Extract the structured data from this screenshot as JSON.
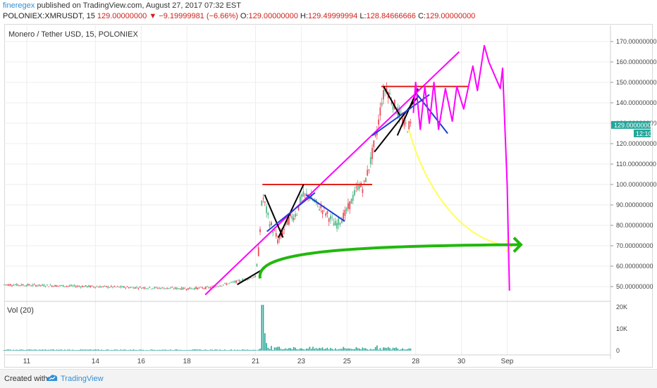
{
  "header": {
    "username": "fineregex",
    "published_text": "published on TradingView.com, August 27, 2017 07:32 EST"
  },
  "symbol_bar": {
    "ticker": "POLONIEX:XMRUSDT, 15",
    "last": "129.00000000",
    "arrow": "▼",
    "change": "−9.19999981 (−6.66%)",
    "o_label": "O:",
    "o_value": "129.00000000",
    "h_label": "H:",
    "h_value": "129.49999994",
    "l_label": "L:",
    "l_value": "128.84666666",
    "c_label": "C:",
    "c_value": "129.00000000"
  },
  "chart_data": {
    "type": "candlestick",
    "title": "Monero / Tether USD, 15, POLONIEX",
    "volume_label": "Vol (20)",
    "y_ticks": [
      "170.00000000",
      "160.00000000",
      "150.00000000",
      "140.00000000",
      "130.00000000",
      "120.00000000",
      "110.00000000",
      "100.00000000",
      "90.00000000",
      "80.00000000",
      "70.00000000",
      "60.00000000",
      "50.00000000"
    ],
    "y_tick_values": [
      170,
      160,
      150,
      140,
      130,
      120,
      110,
      100,
      90,
      80,
      70,
      60,
      50
    ],
    "vol_ticks": [
      "20K",
      "10K",
      "0"
    ],
    "vol_tick_values": [
      20000,
      10000,
      0
    ],
    "x_ticks": [
      "11",
      "14",
      "16",
      "18",
      "21",
      "23",
      "25",
      "28",
      "30",
      "Sep"
    ],
    "x_tick_days": [
      11,
      14,
      16,
      18,
      21,
      23,
      25,
      28,
      30,
      32
    ],
    "price_marker": "129.00000000",
    "time_marker": "12:10",
    "price_path": [
      [
        10,
        51
      ],
      [
        12,
        50.5
      ],
      [
        14,
        50
      ],
      [
        16,
        49.5
      ],
      [
        18,
        49
      ],
      [
        19,
        49.5
      ],
      [
        20,
        52
      ],
      [
        21,
        55
      ],
      [
        21.1,
        62
      ],
      [
        21.3,
        95
      ],
      [
        21.6,
        82
      ],
      [
        22,
        72
      ],
      [
        22.4,
        82
      ],
      [
        22.8,
        86
      ],
      [
        23,
        94
      ],
      [
        23.3,
        95
      ],
      [
        23.7,
        90
      ],
      [
        24,
        87
      ],
      [
        24.5,
        80
      ],
      [
        24.9,
        85
      ],
      [
        25.2,
        92
      ],
      [
        25.5,
        100
      ],
      [
        25.7,
        98
      ],
      [
        26,
        110
      ],
      [
        26.3,
        125
      ],
      [
        26.5,
        140
      ],
      [
        26.7,
        148
      ],
      [
        27,
        140
      ],
      [
        27.3,
        134
      ],
      [
        27.6,
        128
      ],
      [
        27.8,
        129
      ]
    ],
    "volume_bars": [
      [
        21.3,
        21000
      ],
      [
        21.4,
        8000
      ],
      [
        21.5,
        3500
      ],
      [
        21.7,
        2200
      ],
      [
        22,
        1800
      ],
      [
        22.5,
        1200
      ],
      [
        23,
        900
      ],
      [
        24,
        700
      ],
      [
        25,
        900
      ],
      [
        25.8,
        1100
      ],
      [
        26.3,
        2400
      ],
      [
        26.6,
        1500
      ],
      [
        27,
        1000
      ],
      [
        27.5,
        600
      ]
    ],
    "annotations": [
      {
        "kind": "line",
        "color": "#ff00ff",
        "points": [
          [
            18.8,
            46
          ],
          [
            29.9,
            165
          ]
        ]
      },
      {
        "kind": "line",
        "color": "#e0231c",
        "points": [
          [
            21.3,
            100
          ],
          [
            26.1,
            100
          ]
        ]
      },
      {
        "kind": "line",
        "color": "#e0231c",
        "points": [
          [
            26.5,
            148
          ],
          [
            30.3,
            148
          ]
        ]
      },
      {
        "kind": "line",
        "color": "#000000",
        "points": [
          [
            20.2,
            51
          ],
          [
            21.4,
            59
          ]
        ]
      },
      {
        "kind": "line",
        "color": "#000000",
        "points": [
          [
            21.4,
            95
          ],
          [
            22.2,
            74
          ]
        ]
      },
      {
        "kind": "line",
        "color": "#000000",
        "points": [
          [
            22,
            74
          ],
          [
            23.1,
            100
          ]
        ]
      },
      {
        "kind": "line",
        "color": "#000000",
        "points": [
          [
            26.2,
            116
          ],
          [
            28.1,
            143
          ]
        ]
      },
      {
        "kind": "line",
        "color": "#000000",
        "points": [
          [
            26.6,
            148
          ],
          [
            27.3,
            134
          ]
        ]
      },
      {
        "kind": "line",
        "color": "#000000",
        "points": [
          [
            27.2,
            124
          ],
          [
            28.1,
            147
          ]
        ]
      },
      {
        "kind": "line",
        "color": "#1f3fd6",
        "points": [
          [
            21.5,
            77
          ],
          [
            23.6,
            96
          ]
        ]
      },
      {
        "kind": "line",
        "color": "#1f3fd6",
        "points": [
          [
            23.2,
            95
          ],
          [
            24.9,
            82
          ]
        ]
      },
      {
        "kind": "line",
        "color": "#1f3fd6",
        "points": [
          [
            26.1,
            124
          ],
          [
            28.6,
            144
          ]
        ]
      },
      {
        "kind": "line",
        "color": "#1f3fd6",
        "points": [
          [
            28.0,
            145
          ],
          [
            29.4,
            125
          ]
        ]
      },
      {
        "kind": "curve",
        "color": "#ffff55",
        "points": [
          [
            27.7,
            127
          ],
          [
            28.5,
            94
          ],
          [
            30.3,
            71
          ],
          [
            32.2,
            70
          ]
        ]
      },
      {
        "kind": "curve",
        "color": "#22b80d",
        "points": [
          [
            21.2,
            54
          ],
          [
            21.0,
            66
          ],
          [
            24,
            70
          ],
          [
            32.6,
            70.5
          ]
        ]
      },
      {
        "kind": "zigzag",
        "color": "#ff00ff",
        "points": [
          [
            27.9,
            135
          ],
          [
            28.0,
            150
          ],
          [
            28.2,
            127
          ],
          [
            28.4,
            148
          ],
          [
            28.6,
            130
          ],
          [
            28.8,
            150
          ],
          [
            29.0,
            127
          ],
          [
            29.3,
            147
          ],
          [
            29.6,
            131
          ],
          [
            29.8,
            148
          ],
          [
            30.1,
            137
          ],
          [
            30.5,
            158
          ],
          [
            30.7,
            146
          ],
          [
            31,
            168
          ],
          [
            31.2,
            160
          ],
          [
            31.7,
            147
          ],
          [
            31.8,
            157
          ],
          [
            32,
            100
          ],
          [
            32.1,
            48
          ]
        ]
      }
    ]
  },
  "footer": {
    "created_with": "Created with",
    "brand": "TradingView"
  }
}
